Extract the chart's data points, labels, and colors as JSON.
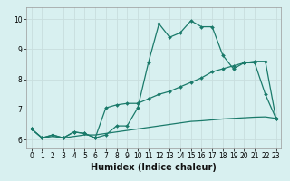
{
  "xlabel": "Humidex (Indice chaleur)",
  "background_color": "#d8f0f0",
  "grid_color": "#c8dede",
  "line_color": "#1a7a6a",
  "xlim": [
    -0.5,
    23.5
  ],
  "ylim": [
    5.7,
    10.4
  ],
  "xticks": [
    0,
    1,
    2,
    3,
    4,
    5,
    6,
    7,
    8,
    9,
    10,
    11,
    12,
    13,
    14,
    15,
    16,
    17,
    18,
    19,
    20,
    21,
    22,
    23
  ],
  "yticks": [
    6,
    7,
    8,
    9,
    10
  ],
  "line1_x": [
    0,
    1,
    2,
    3,
    4,
    5,
    6,
    7,
    8,
    9,
    10,
    11,
    12,
    13,
    14,
    15,
    16,
    17,
    18,
    19,
    20,
    21,
    22,
    23
  ],
  "line1_y": [
    6.35,
    6.05,
    6.15,
    6.05,
    6.25,
    6.2,
    6.05,
    6.15,
    6.45,
    6.45,
    7.05,
    8.55,
    9.85,
    9.4,
    9.55,
    9.95,
    9.75,
    9.75,
    8.8,
    8.35,
    8.55,
    8.55,
    7.5,
    6.7
  ],
  "line2_x": [
    0,
    1,
    2,
    3,
    4,
    5,
    6,
    7,
    8,
    9,
    10,
    11,
    12,
    13,
    14,
    15,
    16,
    17,
    18,
    19,
    20,
    21,
    22,
    23
  ],
  "line2_y": [
    6.35,
    6.05,
    6.15,
    6.05,
    6.25,
    6.2,
    6.05,
    7.05,
    7.15,
    7.2,
    7.2,
    7.35,
    7.5,
    7.6,
    7.75,
    7.9,
    8.05,
    8.25,
    8.35,
    8.45,
    8.55,
    8.6,
    8.6,
    6.7
  ],
  "line3_x": [
    0,
    1,
    2,
    3,
    4,
    5,
    6,
    7,
    8,
    9,
    10,
    11,
    12,
    13,
    14,
    15,
    16,
    17,
    18,
    19,
    20,
    21,
    22,
    23
  ],
  "line3_y": [
    6.35,
    6.05,
    6.1,
    6.05,
    6.1,
    6.15,
    6.15,
    6.2,
    6.25,
    6.3,
    6.35,
    6.4,
    6.45,
    6.5,
    6.55,
    6.6,
    6.62,
    6.65,
    6.68,
    6.7,
    6.72,
    6.74,
    6.75,
    6.7
  ],
  "tick_labelsize": 5.5,
  "xlabel_fontsize": 7,
  "linewidth": 0.9,
  "markersize": 2.0
}
